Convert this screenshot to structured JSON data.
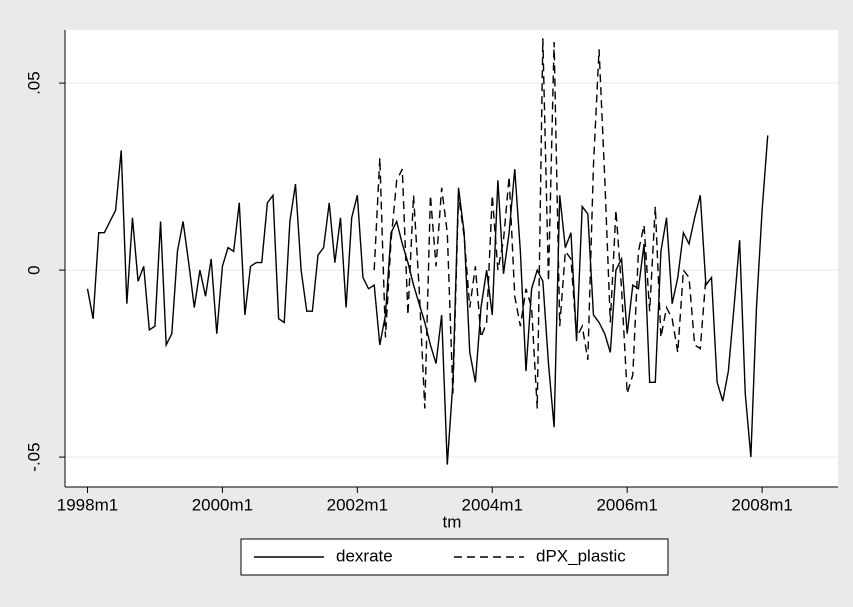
{
  "chart_data": {
    "type": "line",
    "x_label": "tm",
    "xlim": [
      452,
      589.5
    ],
    "xticks": [
      {
        "value": 456,
        "label": "1998m1"
      },
      {
        "value": 480,
        "label": "2000m1"
      },
      {
        "value": 504,
        "label": "2002m1"
      },
      {
        "value": 528,
        "label": "2004m1"
      },
      {
        "value": 552,
        "label": "2006m1"
      },
      {
        "value": 576,
        "label": "2008m1"
      }
    ],
    "ylim": [
      -0.058,
      0.0642
    ],
    "yticks": [
      {
        "value": -0.05,
        "label": "-.05"
      },
      0,
      {
        "value": 0.05,
        "label": ".05"
      }
    ],
    "grid": true,
    "series": [
      {
        "name": "dexrate",
        "color": "#000000",
        "dash": "solid",
        "x": [
          456,
          457,
          458,
          459,
          460,
          461,
          462,
          463,
          464,
          465,
          466,
          467,
          468,
          469,
          470,
          471,
          472,
          473,
          474,
          475,
          476,
          477,
          478,
          479,
          480,
          481,
          482,
          483,
          484,
          485,
          486,
          487,
          488,
          489,
          490,
          491,
          492,
          493,
          494,
          495,
          496,
          497,
          498,
          499,
          500,
          501,
          502,
          503,
          504,
          505,
          506,
          507,
          508,
          509,
          510,
          511,
          512,
          513,
          514,
          515,
          516,
          517,
          518,
          519,
          520,
          521,
          522,
          523,
          524,
          525,
          526,
          527,
          528,
          529,
          530,
          531,
          532,
          533,
          534,
          535,
          536,
          537,
          538,
          539,
          540,
          541,
          542,
          543,
          544,
          545,
          546,
          547,
          548,
          549,
          550,
          551,
          552,
          553,
          554,
          555,
          556,
          557,
          558,
          559,
          560,
          561,
          562,
          563,
          564,
          565,
          566,
          567,
          568,
          569,
          570,
          571,
          572,
          573,
          574,
          575,
          576,
          577
        ],
        "values": [
          -0.005,
          -0.013,
          0.01,
          0.01,
          0.013,
          0.016,
          0.032,
          -0.009,
          0.014,
          -0.003,
          0.001,
          -0.016,
          -0.015,
          0.013,
          -0.02,
          -0.017,
          0.005,
          0.013,
          0.002,
          -0.01,
          0.0,
          -0.007,
          0.003,
          -0.017,
          0.001,
          0.006,
          0.005,
          0.018,
          -0.012,
          0.001,
          0.002,
          0.002,
          0.018,
          0.02,
          -0.013,
          -0.014,
          0.013,
          0.023,
          0.0,
          -0.011,
          -0.011,
          0.004,
          0.006,
          0.018,
          0.002,
          0.014,
          -0.01,
          0.014,
          0.02,
          -0.002,
          -0.005,
          -0.004,
          -0.02,
          -0.012,
          0.01,
          0.013,
          0.007,
          0.002,
          -0.004,
          -0.009,
          -0.014,
          -0.02,
          -0.025,
          -0.012,
          -0.052,
          -0.03,
          0.022,
          0.01,
          -0.022,
          -0.03,
          -0.01,
          0.0,
          -0.012,
          0.024,
          -0.001,
          0.01,
          0.027,
          0.005,
          -0.027,
          -0.005,
          0.0,
          -0.003,
          -0.025,
          -0.042,
          0.02,
          0.006,
          0.01,
          -0.019,
          0.017,
          0.015,
          -0.012,
          -0.014,
          -0.017,
          -0.022,
          0.0,
          0.003,
          -0.017,
          -0.004,
          -0.005,
          0.007,
          -0.03,
          -0.03,
          0.005,
          0.014,
          -0.009,
          -0.002,
          0.01,
          0.007,
          0.014,
          0.02,
          -0.004,
          -0.002,
          -0.03,
          -0.035,
          -0.027,
          -0.01,
          0.008,
          -0.033,
          -0.05,
          -0.01,
          0.016,
          0.036
        ]
      },
      {
        "name": "dPX_plastic",
        "color": "#000000",
        "dash": "dashed",
        "x": [
          507,
          508,
          509,
          510,
          511,
          512,
          513,
          514,
          515,
          516,
          517,
          518,
          519,
          520,
          521,
          522,
          523,
          524,
          525,
          526,
          527,
          528,
          529,
          530,
          531,
          532,
          533,
          534,
          535,
          536,
          537,
          538,
          539,
          540,
          541,
          542,
          543,
          544,
          545,
          546,
          547,
          548,
          549,
          550,
          551,
          552,
          553,
          554,
          555,
          556,
          557,
          558,
          559,
          560,
          561,
          562,
          563,
          564,
          565,
          566
        ],
        "values": [
          0.0,
          0.03,
          -0.018,
          0.008,
          0.024,
          0.027,
          -0.012,
          0.02,
          -0.005,
          -0.037,
          0.02,
          0.001,
          0.022,
          0.01,
          -0.033,
          0.02,
          0.009,
          -0.01,
          0.001,
          -0.018,
          -0.014,
          0.02,
          0.0,
          0.008,
          0.025,
          -0.007,
          -0.015,
          -0.005,
          -0.01,
          -0.037,
          0.062,
          -0.003,
          0.061,
          -0.015,
          0.005,
          0.003,
          -0.018,
          -0.015,
          -0.024,
          0.028,
          0.059,
          0.025,
          -0.014,
          0.016,
          -0.005,
          -0.033,
          -0.028,
          0.005,
          0.012,
          -0.011,
          0.017,
          -0.018,
          -0.01,
          -0.013,
          -0.022,
          0.0,
          -0.002,
          -0.02,
          -0.021,
          -0.002
        ]
      }
    ]
  }
}
